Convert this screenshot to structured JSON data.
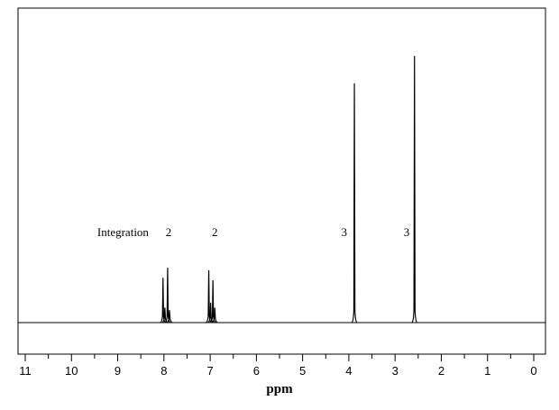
{
  "chart_data": {
    "type": "line",
    "title": "",
    "xlabel": "ppm",
    "ylabel": "",
    "xlim": [
      11,
      0
    ],
    "x_reversed": true,
    "grid": false,
    "ticks": [
      11,
      10,
      9,
      8,
      7,
      6,
      5,
      4,
      3,
      2,
      1,
      0
    ],
    "tick_labels": [
      "11",
      "10",
      "9",
      "8",
      "7",
      "6",
      "5",
      "4",
      "3",
      "2",
      "1",
      "0"
    ],
    "minor_tick_step": 0.5,
    "integration_label": "Integration",
    "integrations": [
      {
        "ppm": 7.9,
        "value": "2"
      },
      {
        "ppm": 6.9,
        "value": "2"
      },
      {
        "ppm": 4.1,
        "value": "3"
      },
      {
        "ppm": 2.75,
        "value": "3"
      }
    ],
    "peaks": [
      {
        "ppm": 8.02,
        "height": 0.18
      },
      {
        "ppm": 7.98,
        "height": 0.06
      },
      {
        "ppm": 7.92,
        "height": 0.22
      },
      {
        "ppm": 7.88,
        "height": 0.05
      },
      {
        "ppm": 7.03,
        "height": 0.21
      },
      {
        "ppm": 6.99,
        "height": 0.08
      },
      {
        "ppm": 6.94,
        "height": 0.17
      },
      {
        "ppm": 6.9,
        "height": 0.06
      },
      {
        "ppm": 3.88,
        "height": 0.96
      },
      {
        "ppm": 2.58,
        "height": 1.07
      }
    ],
    "baseline_y_range": [
      0,
      1.15
    ]
  }
}
